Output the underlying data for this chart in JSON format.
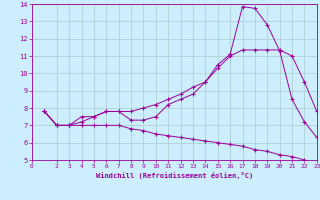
{
  "xlabel": "Windchill (Refroidissement éolien,°C)",
  "bg_color": "#cceeff",
  "line_color": "#990099",
  "grid_color": "#aacccc",
  "xmin": 0,
  "xmax": 23,
  "ymin": 5,
  "ymax": 14,
  "line1_x": [
    1,
    2,
    3,
    4,
    5,
    6,
    7,
    8,
    9,
    10,
    11,
    12,
    13,
    14,
    15,
    16,
    17,
    18,
    19,
    20,
    21,
    22,
    23
  ],
  "line1_y": [
    7.8,
    7.0,
    7.0,
    7.5,
    7.5,
    7.8,
    7.8,
    7.3,
    7.3,
    7.5,
    8.2,
    8.5,
    8.8,
    9.5,
    10.5,
    11.1,
    13.85,
    13.75,
    12.8,
    11.3,
    8.5,
    7.2,
    6.3
  ],
  "line2_x": [
    1,
    2,
    3,
    4,
    5,
    6,
    7,
    8,
    9,
    10,
    11,
    12,
    13,
    14,
    15,
    16,
    17,
    18,
    19,
    20,
    21,
    22,
    23
  ],
  "line2_y": [
    7.8,
    7.0,
    7.0,
    7.2,
    7.5,
    7.8,
    7.8,
    7.8,
    8.0,
    8.2,
    8.5,
    8.8,
    9.2,
    9.5,
    10.3,
    11.0,
    11.35,
    11.35,
    11.35,
    11.35,
    11.0,
    9.5,
    7.8
  ],
  "line3_x": [
    1,
    2,
    3,
    4,
    5,
    6,
    7,
    8,
    9,
    10,
    11,
    12,
    13,
    14,
    15,
    16,
    17,
    18,
    19,
    20,
    21,
    22,
    23
  ],
  "line3_y": [
    7.8,
    7.0,
    7.0,
    7.0,
    7.0,
    7.0,
    7.0,
    6.8,
    6.7,
    6.5,
    6.4,
    6.3,
    6.2,
    6.1,
    6.0,
    5.9,
    5.8,
    5.6,
    5.5,
    5.3,
    5.2,
    5.0,
    4.8
  ],
  "yticks": [
    5,
    6,
    7,
    8,
    9,
    10,
    11,
    12,
    13,
    14
  ],
  "xtick_positions": [
    0,
    2,
    3,
    4,
    5,
    6,
    7,
    8,
    9,
    10,
    11,
    12,
    13,
    14,
    15,
    16,
    17,
    18,
    19,
    20,
    21,
    22,
    23
  ],
  "xtick_labels": [
    "0",
    "2",
    "3",
    "4",
    "5",
    "6",
    "7",
    "8",
    "9",
    "10",
    "11",
    "12",
    "13",
    "14",
    "15",
    "16",
    "17",
    "18",
    "19",
    "20",
    "21",
    "22",
    "23"
  ]
}
